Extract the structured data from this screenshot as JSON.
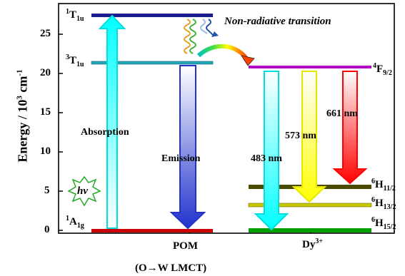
{
  "axis": {
    "ylabel": "Energy / 10",
    "ylabel_exp": "3",
    "ylabel_unit": " cm",
    "ylabel_unit_exp": "-1",
    "ticks": [
      "0",
      "5",
      "10",
      "15",
      "20",
      "25"
    ]
  },
  "pom": {
    "label": "POM",
    "sublabel": "(O→W LMCT)",
    "level_t1u": {
      "pre": "1",
      "main": "T",
      "sub": "1u"
    },
    "level_3t1u": {
      "pre": "3",
      "main": "T",
      "sub": "1u"
    },
    "level_a1g": {
      "pre": "1",
      "main": "A",
      "sub": "1g"
    },
    "absorption": "Absorption",
    "emission": "Emission",
    "hv": "hv"
  },
  "dy": {
    "label": "Dy",
    "label_exp": "3+",
    "f92": {
      "pre": "4",
      "main": "F",
      "sub": "9/2"
    },
    "h112": {
      "pre": "6",
      "main": "H",
      "sub": "11/2"
    },
    "h132": {
      "pre": "6",
      "main": "H",
      "sub": "13/2"
    },
    "h152": {
      "pre": "6",
      "main": "H",
      "sub": "15/2"
    },
    "em483": "483 nm",
    "em573": "573 nm",
    "em661": "661 nm"
  },
  "nonrad": "Non-radiative transition",
  "colors": {
    "t1u": "#1c1c8c",
    "t1u3": "#22a8b8",
    "a1g": "#cc0000",
    "f92": "#b000c0",
    "h112": "#4a4a00",
    "h132": "#c8c800",
    "h152": "#00a000",
    "absorption_arrow": "#00ffff",
    "emission_arrow": "#2233cc",
    "arrow483": "#00ffff",
    "arrow573": "#ffff00",
    "arrow661": "#ff0000",
    "hv_star": "#22aa22"
  }
}
